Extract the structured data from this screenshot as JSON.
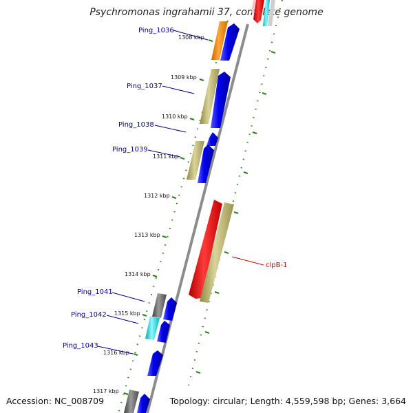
{
  "title": "Psychromonas ingrahamii 37, complete genome",
  "accession": "Accession: NC_008709",
  "topology": "Topology: circular; Length: 4,559,598 bp; Genes: 3,664",
  "colors": {
    "label_blue": "#00008b",
    "label_red": "#cc0000",
    "tick_green": "#2e7d1e",
    "backbone": "#8c8c8c",
    "blue": "#0000ee",
    "khaki": "#bdb76b",
    "orange": "#ff8c00",
    "red": "#ff0000",
    "gray": "#707070",
    "cyan": "#00e5ee"
  },
  "scale_labels": [
    {
      "text": "1308 kbp"
    },
    {
      "text": "1309 kbp"
    },
    {
      "text": "1310 kbp"
    },
    {
      "text": "1311 kbp"
    },
    {
      "text": "1312 kbp"
    },
    {
      "text": "1313 kbp"
    },
    {
      "text": "1314 kbp"
    },
    {
      "text": "1315 kbp"
    },
    {
      "text": "1316 kbp"
    },
    {
      "text": "1317 kbp"
    }
  ],
  "gene_labels": [
    {
      "name": "Ping_1036",
      "color": "blue"
    },
    {
      "name": "Ping_1037",
      "color": "blue"
    },
    {
      "name": "Ping_1038",
      "color": "blue"
    },
    {
      "name": "Ping_1039",
      "color": "blue"
    },
    {
      "name": "Ping_1041",
      "color": "blue"
    },
    {
      "name": "Ping_1042",
      "color": "blue"
    },
    {
      "name": "Ping_1043",
      "color": "blue"
    },
    {
      "name": "clpB-1",
      "color": "red"
    }
  ]
}
